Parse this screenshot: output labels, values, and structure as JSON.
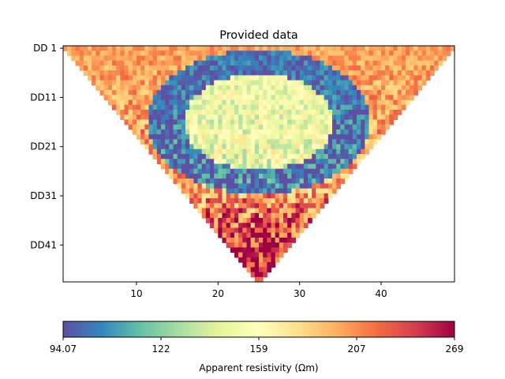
{
  "chart_data": {
    "type": "heatmap",
    "title": "Provided data",
    "xlabel": "",
    "ylabel": "",
    "xlim": [
      1,
      49
    ],
    "x_ticks": [
      "10",
      "20",
      "30",
      "40"
    ],
    "x_tick_values": [
      10,
      20,
      30,
      40
    ],
    "y_tick_labels": [
      "DD 1",
      "DD11",
      "DD21",
      "DD31",
      "DD41"
    ],
    "y_tick_levels": [
      1,
      11,
      21,
      31,
      41
    ],
    "levels": 48,
    "grid": false,
    "shape": "inverted triangle pseudosection",
    "colormap": "Spectral_r",
    "colorbar": {
      "label": "Apparent resistivity (Ωm)",
      "tick_labels": [
        "94.07",
        "122",
        "159",
        "207",
        "269"
      ],
      "min": 94.07,
      "max": 269,
      "scale": "log"
    },
    "colors": {
      "stops": [
        "#5e4fa2",
        "#3288bd",
        "#66c2a5",
        "#abdda4",
        "#e6f598",
        "#ffffbf",
        "#fee08b",
        "#fdae61",
        "#f46d43",
        "#d53e4f",
        "#9e0142"
      ]
    },
    "pattern_description_values": {
      "background": 200,
      "low_band": 100,
      "core": 150
    }
  }
}
